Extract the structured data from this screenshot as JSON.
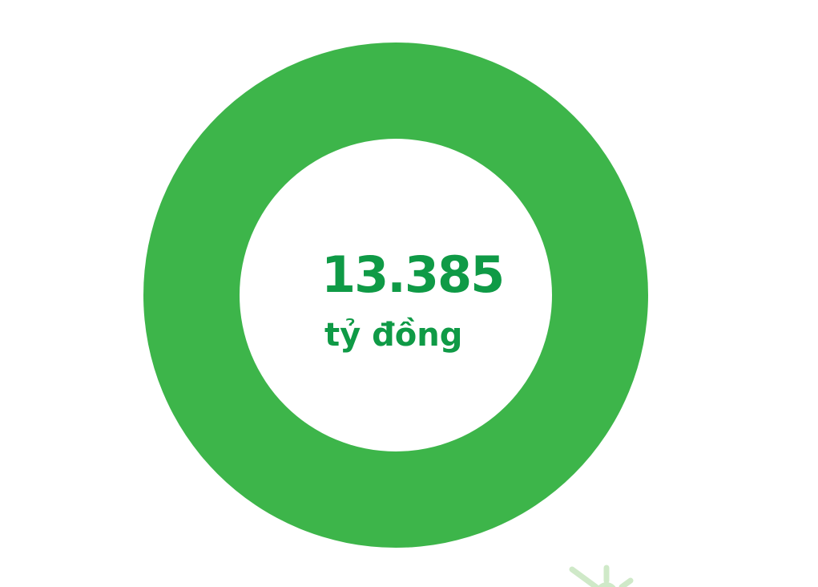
{
  "chart_data": {
    "type": "pie",
    "variant": "donut",
    "slices": [
      {
        "value": 13385,
        "color": "#3db54a"
      }
    ],
    "center_value": "13.385",
    "center_unit": "tỷ đồng",
    "title": "",
    "legend": "none"
  },
  "colors": {
    "ring": "#3db54a",
    "text": "#0f9a46",
    "decoration": "#cfe9c8"
  },
  "decoration": {
    "icon": "sun-burst-icon"
  }
}
